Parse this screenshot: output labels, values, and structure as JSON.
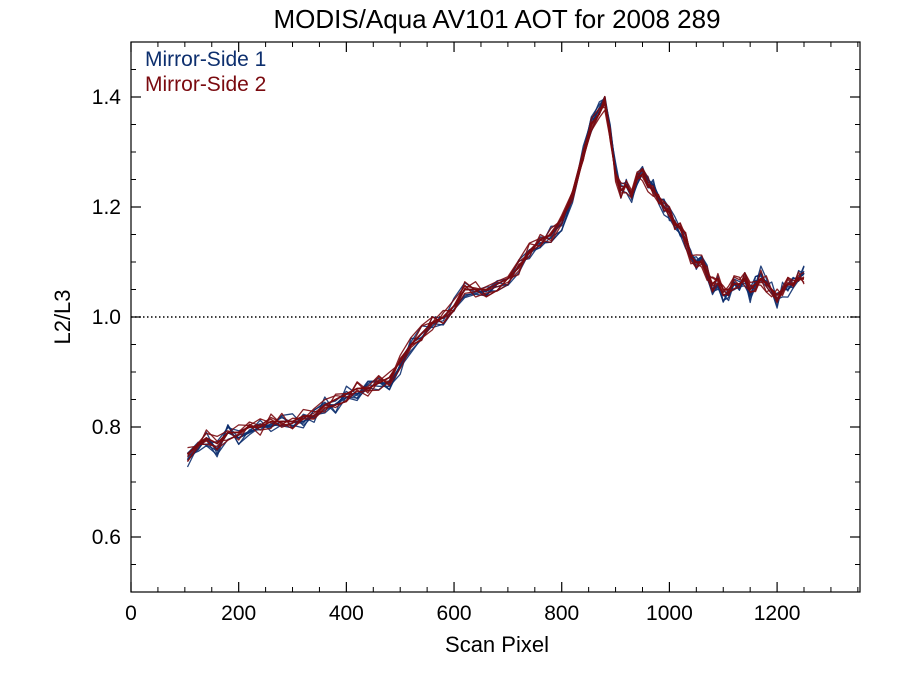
{
  "chart_data": {
    "type": "line",
    "title": "MODIS/Aqua AV101 AOT for 2008 289",
    "xlabel": "Scan Pixel",
    "ylabel": "L2/L3",
    "xlim": [
      0,
      1354
    ],
    "ylim": [
      0.5,
      1.5
    ],
    "xticks": [
      "0",
      "200",
      "400",
      "600",
      "800",
      "1000",
      "1200"
    ],
    "yticks": [
      "0.6",
      "0.8",
      "1.0",
      "1.2",
      "1.4"
    ],
    "reference_line": {
      "y": 1.0,
      "style": "dotted"
    },
    "legend_placement": "top-left",
    "colors": {
      "Mirror-Side 1": "#0d2f6e",
      "Mirror-Side 2": "#7a0a0f"
    },
    "series": [
      {
        "name": "Mirror-Side 1",
        "x": [
          105,
          125,
          140,
          160,
          180,
          200,
          220,
          240,
          260,
          280,
          300,
          320,
          340,
          360,
          380,
          400,
          420,
          440,
          460,
          480,
          500,
          520,
          540,
          560,
          580,
          600,
          620,
          640,
          660,
          680,
          700,
          720,
          740,
          760,
          780,
          800,
          820,
          840,
          855,
          870,
          880,
          890,
          900,
          910,
          920,
          930,
          940,
          950,
          960,
          970,
          980,
          990,
          1000,
          1010,
          1020,
          1030,
          1040,
          1050,
          1060,
          1070,
          1080,
          1090,
          1100,
          1110,
          1120,
          1130,
          1140,
          1150,
          1160,
          1170,
          1180,
          1190,
          1200,
          1210,
          1220,
          1230,
          1240,
          1250
        ],
        "values": [
          0.74,
          0.76,
          0.78,
          0.76,
          0.79,
          0.78,
          0.79,
          0.8,
          0.8,
          0.81,
          0.81,
          0.81,
          0.82,
          0.84,
          0.84,
          0.86,
          0.86,
          0.87,
          0.88,
          0.88,
          0.91,
          0.95,
          0.97,
          0.99,
          1.0,
          1.02,
          1.05,
          1.05,
          1.04,
          1.06,
          1.07,
          1.09,
          1.12,
          1.14,
          1.15,
          1.17,
          1.22,
          1.3,
          1.35,
          1.38,
          1.4,
          1.34,
          1.27,
          1.23,
          1.24,
          1.22,
          1.25,
          1.27,
          1.25,
          1.24,
          1.22,
          1.2,
          1.19,
          1.17,
          1.15,
          1.14,
          1.11,
          1.1,
          1.11,
          1.08,
          1.05,
          1.06,
          1.04,
          1.04,
          1.06,
          1.05,
          1.07,
          1.04,
          1.06,
          1.08,
          1.06,
          1.05,
          1.03,
          1.05,
          1.05,
          1.06,
          1.07,
          1.08
        ]
      },
      {
        "name": "Mirror-Side 2",
        "x": [
          105,
          125,
          140,
          160,
          180,
          200,
          220,
          240,
          260,
          280,
          300,
          320,
          340,
          360,
          380,
          400,
          420,
          440,
          460,
          480,
          500,
          520,
          540,
          560,
          580,
          600,
          620,
          640,
          660,
          680,
          700,
          720,
          740,
          760,
          780,
          800,
          820,
          840,
          855,
          870,
          880,
          890,
          900,
          910,
          920,
          930,
          940,
          950,
          960,
          970,
          980,
          990,
          1000,
          1010,
          1020,
          1030,
          1040,
          1050,
          1060,
          1070,
          1080,
          1090,
          1100,
          1110,
          1120,
          1130,
          1140,
          1150,
          1160,
          1170,
          1180,
          1190,
          1200,
          1210,
          1220,
          1230,
          1240,
          1250
        ],
        "values": [
          0.75,
          0.77,
          0.78,
          0.77,
          0.79,
          0.79,
          0.8,
          0.8,
          0.81,
          0.81,
          0.81,
          0.82,
          0.82,
          0.84,
          0.85,
          0.86,
          0.87,
          0.87,
          0.88,
          0.89,
          0.92,
          0.95,
          0.97,
          0.99,
          1.0,
          1.02,
          1.05,
          1.05,
          1.05,
          1.06,
          1.07,
          1.09,
          1.12,
          1.14,
          1.15,
          1.18,
          1.22,
          1.3,
          1.35,
          1.37,
          1.39,
          1.33,
          1.26,
          1.23,
          1.24,
          1.22,
          1.25,
          1.26,
          1.24,
          1.23,
          1.22,
          1.2,
          1.19,
          1.17,
          1.16,
          1.14,
          1.11,
          1.1,
          1.1,
          1.08,
          1.06,
          1.07,
          1.05,
          1.05,
          1.06,
          1.06,
          1.07,
          1.05,
          1.06,
          1.07,
          1.06,
          1.05,
          1.04,
          1.05,
          1.06,
          1.06,
          1.07,
          1.07
        ]
      }
    ]
  }
}
